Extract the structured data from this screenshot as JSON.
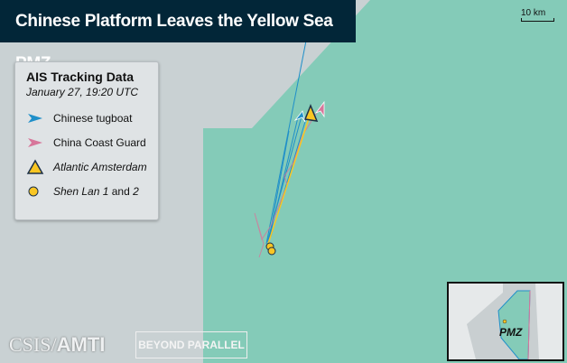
{
  "title": "Chinese Platform Leaves the Yellow Sea PMZ",
  "legend": {
    "title": "AIS Tracking Data",
    "date": "January 27, 19:20 UTC",
    "items": [
      {
        "label": "Chinese tugboat",
        "icon": "arrow-icon",
        "color": "#1f8fc9"
      },
      {
        "label": "China Coast Guard",
        "icon": "arrow-icon",
        "color": "#d7769a"
      },
      {
        "label": "Atlantic Amsterdam",
        "icon": "triangle-icon",
        "color": "#f9c623"
      },
      {
        "label_italic": "Shen Lan 1",
        "label_rest": " and ",
        "label_italic2": "2",
        "icon": "circle-icon",
        "color": "#f9c623"
      }
    ]
  },
  "scale": "10 km",
  "inset": {
    "label": "PMZ"
  },
  "logos": {
    "csis": "CSIS",
    "amti": "AMTI",
    "beyond": "BEYOND PARALLEL"
  },
  "colors": {
    "pmz": "#84cbb8",
    "outside": "#c9d1d3",
    "title_bg": "#022638"
  }
}
